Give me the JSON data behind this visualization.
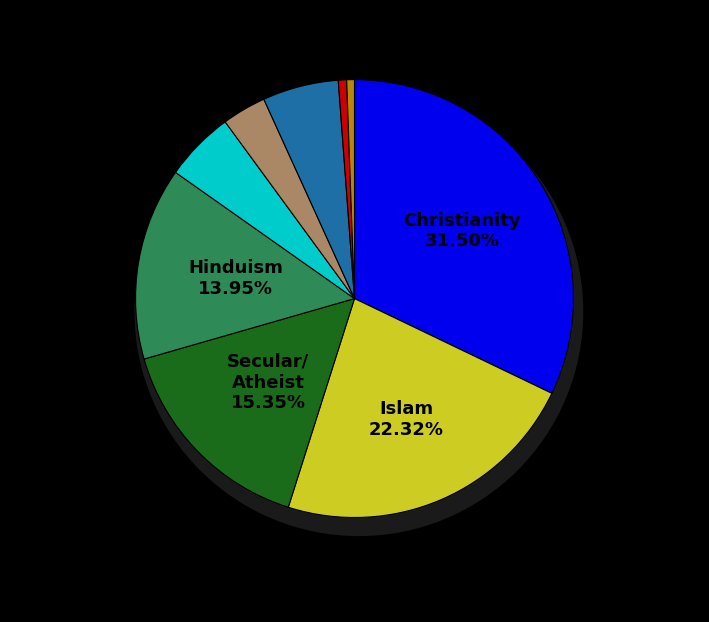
{
  "slices": [
    {
      "label": "Christianity\n31.50%",
      "value": 31.5,
      "color": "#0000EE",
      "label_r": 0.58
    },
    {
      "label": "Islam\n22.32%",
      "value": 22.32,
      "color": "#CCCC22",
      "label_r": 0.6
    },
    {
      "label": "Secular/\nAtheist\n15.35%",
      "value": 15.35,
      "color": "#1A6B1A",
      "label_r": 0.55
    },
    {
      "label": "Hinduism\n13.95%",
      "value": 13.95,
      "color": "#2E8B57",
      "label_r": 0.55
    },
    {
      "label": "",
      "value": 5.07,
      "color": "#00CCCC",
      "label_r": 0
    },
    {
      "label": "",
      "value": 3.2,
      "color": "#AA8866",
      "label_r": 0
    },
    {
      "label": "",
      "value": 5.5,
      "color": "#1E6FA5",
      "label_r": 0
    },
    {
      "label": "",
      "value": 0.6,
      "color": "#CC0000",
      "label_r": 0
    },
    {
      "label": "",
      "value": 0.56,
      "color": "#B8860B",
      "label_r": 0
    }
  ],
  "background_color": "#000000",
  "text_color": "#000000",
  "font_size": 13,
  "startangle": 90,
  "figsize": [
    7.09,
    6.22
  ],
  "dpi": 100
}
